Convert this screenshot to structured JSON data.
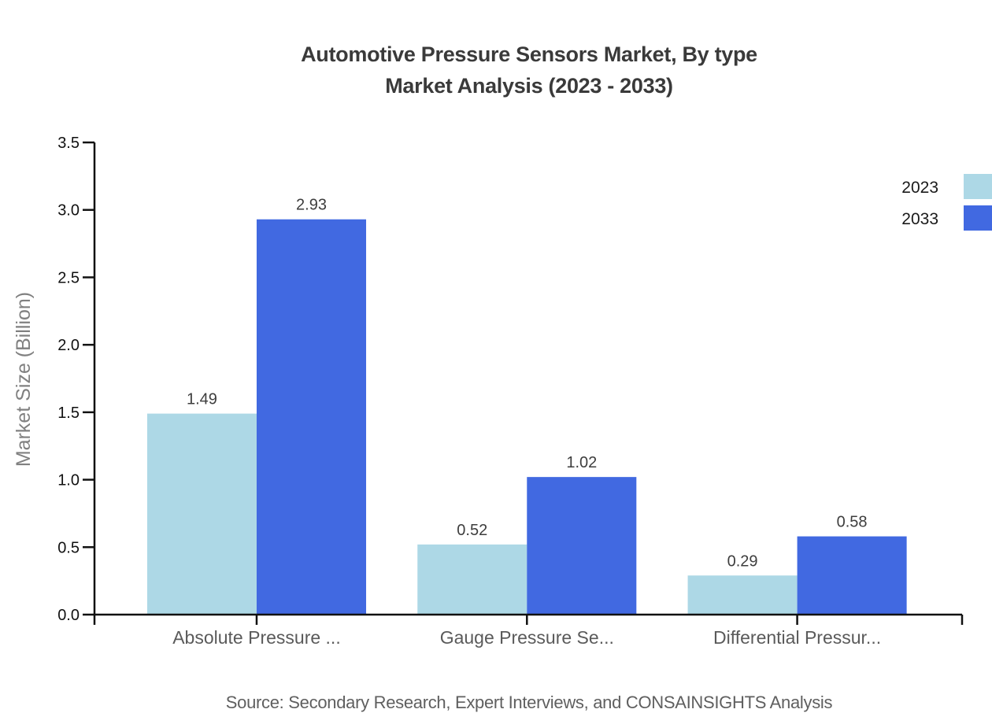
{
  "title": {
    "line1": "Automotive Pressure Sensors Market, By type",
    "line2": "Market Analysis (2023 - 2033)"
  },
  "source": "Source: Secondary Research, Expert Interviews, and CONSAINSIGHTS Analysis",
  "chart_data": {
    "type": "bar",
    "categories": [
      "Absolute Pressure ...",
      "Gauge Pressure Se...",
      "Differential Pressur..."
    ],
    "series": [
      {
        "name": "2023",
        "color": "#ADD8E6",
        "values": [
          1.49,
          0.52,
          0.29
        ]
      },
      {
        "name": "2033",
        "color": "#4169E1",
        "values": [
          2.93,
          1.02,
          0.58
        ]
      }
    ],
    "title": "Automotive Pressure Sensors Market, By type Market Analysis (2023 - 2033)",
    "xlabel": "",
    "ylabel": "Market Size (Billion)",
    "ylim": [
      0,
      3.5
    ],
    "ytick_step": 0.5,
    "xlim": [
      -0.6,
      2.61
    ],
    "bar_width_fraction": 0.405,
    "grid": false,
    "legend_position": "upper-right-edge",
    "value_label_decimals": 2,
    "axis_color": "#111111",
    "ytick_label_color": "#111111",
    "xtick_label_color": "#5a5a5a",
    "value_label_color": "#3d3d3d",
    "legend_label_color": "#1a1a1a"
  }
}
